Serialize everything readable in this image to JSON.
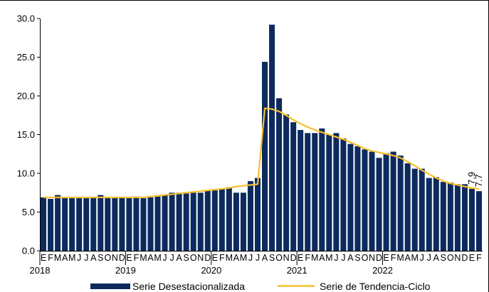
{
  "chart_data": {
    "type": "bar",
    "months": [
      "E",
      "F",
      "M",
      "A",
      "M",
      "J",
      "J",
      "A",
      "S",
      "O",
      "N",
      "D"
    ],
    "years": [
      "2018",
      "2019",
      "2020",
      "2021",
      "2022"
    ],
    "yticks": [
      "0.0",
      "5.0",
      "10.0",
      "15.0",
      "20.0",
      "25.0",
      "30.0"
    ],
    "ylim": [
      0,
      30
    ],
    "series": [
      {
        "name": "Serie Desestacionalizada",
        "kind": "bar",
        "color": "#0d2a5e",
        "values": [
          6.9,
          6.7,
          7.2,
          6.8,
          6.8,
          6.8,
          6.8,
          6.9,
          7.2,
          6.8,
          6.8,
          6.9,
          6.8,
          7.0,
          6.8,
          6.9,
          7.0,
          7.2,
          7.5,
          7.5,
          7.4,
          7.5,
          7.5,
          7.8,
          7.8,
          8.0,
          8.2,
          7.5,
          7.5,
          9.0,
          9.4,
          24.4,
          29.2,
          19.7,
          17.6,
          16.6,
          15.6,
          15.2,
          15.2,
          15.8,
          15.0,
          15.2,
          14.5,
          13.8,
          13.5,
          13.1,
          12.8,
          12.0,
          12.6,
          12.8,
          12.3,
          11.3,
          10.6,
          10.6,
          9.4,
          9.5,
          8.9,
          8.8,
          8.6,
          8.6,
          8.0,
          7.7
        ]
      },
      {
        "name": "Serie de Tendencia-Ciclo",
        "kind": "line",
        "color": "#f5c02c",
        "values": [
          6.9,
          6.9,
          6.9,
          6.9,
          6.9,
          6.9,
          6.9,
          6.9,
          6.9,
          6.9,
          6.9,
          6.9,
          6.9,
          6.9,
          6.9,
          7.0,
          7.1,
          7.2,
          7.3,
          7.4,
          7.5,
          7.6,
          7.7,
          7.8,
          7.9,
          8.0,
          8.1,
          8.3,
          8.4,
          8.5,
          8.6,
          18.4,
          18.3,
          18.0,
          17.5,
          16.9,
          16.4,
          16.0,
          15.6,
          15.3,
          15.0,
          14.7,
          14.4,
          14.0,
          13.6,
          13.2,
          12.9,
          12.7,
          12.5,
          12.3,
          12.0,
          11.5,
          11.0,
          10.4,
          9.9,
          9.4,
          9.0,
          8.7,
          8.5,
          8.3,
          8.1,
          8.0
        ]
      }
    ],
    "data_labels": [
      "7.9",
      "7.7"
    ],
    "grid": false,
    "legend_position": "bottom"
  },
  "colors": {
    "bar": "#0d2a5e",
    "line": "#f5c02c",
    "axis": "#000000"
  }
}
